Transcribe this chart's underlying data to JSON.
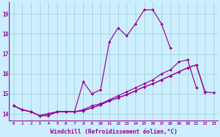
{
  "background_color": "#cceeff",
  "line_color": "#990099",
  "grid_color": "#99cccc",
  "xlabel": "Windchill (Refroidissement éolien,°C)",
  "xlabel_fontsize": 6.0,
  "ylabel_ticks": [
    14,
    15,
    16,
    17,
    18,
    19
  ],
  "xtick_labels": [
    "0",
    "1",
    "2",
    "3",
    "4",
    "5",
    "6",
    "7",
    "8",
    "9",
    "10",
    "11",
    "12",
    "13",
    "14",
    "15",
    "16",
    "17",
    "18",
    "19",
    "20",
    "21",
    "22",
    "23"
  ],
  "xlim": [
    -0.5,
    23.5
  ],
  "ylim": [
    13.65,
    19.6
  ],
  "series1_y": [
    14.4,
    14.2,
    14.1,
    13.9,
    13.9,
    14.1,
    14.1,
    14.1,
    15.6,
    15.0,
    15.2,
    17.6,
    18.3,
    17.9,
    18.5,
    19.2,
    19.2,
    18.5,
    17.3,
    null,
    null,
    null,
    null,
    null
  ],
  "series2_y": [
    14.4,
    14.2,
    14.1,
    13.9,
    14.0,
    14.1,
    14.1,
    14.1,
    14.2,
    14.4,
    14.5,
    14.7,
    14.9,
    15.1,
    15.3,
    15.5,
    15.7,
    16.0,
    16.2,
    16.6,
    16.7,
    15.3,
    null,
    null
  ],
  "series3_y": [
    14.4,
    14.2,
    14.1,
    13.9,
    14.0,
    14.1,
    14.1,
    14.1,
    14.15,
    14.3,
    14.45,
    14.65,
    14.8,
    14.95,
    15.15,
    15.35,
    15.5,
    15.7,
    15.9,
    16.1,
    16.3,
    16.45,
    15.05,
    null
  ],
  "series4_y": [
    14.4,
    14.2,
    14.1,
    13.9,
    14.0,
    14.1,
    14.1,
    14.1,
    14.15,
    14.3,
    14.45,
    14.65,
    14.8,
    14.95,
    15.15,
    15.35,
    15.5,
    15.7,
    15.9,
    16.1,
    16.3,
    16.45,
    15.1,
    15.05
  ],
  "marker": "D",
  "markersize": 2.0,
  "linewidth": 0.9
}
